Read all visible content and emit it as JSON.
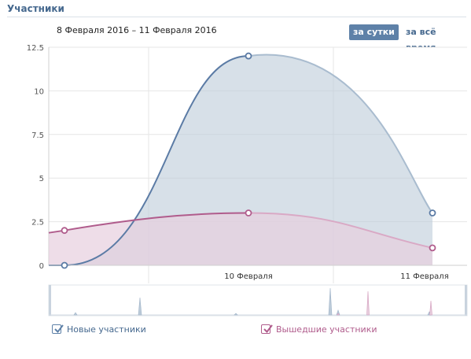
{
  "header": {
    "title": "Участники"
  },
  "date_range": "8 Февраля 2016 – 11 Февраля 2016",
  "period": {
    "active_label": "за сутки",
    "inactive_label": "за всё время"
  },
  "colors": {
    "new_line": "#5b7ba5",
    "new_fill": "#bccbd9",
    "left_line": "#b05c8c",
    "left_fill": "#e7cfde",
    "grid": "#e6e6e6"
  },
  "chart_data": {
    "type": "area",
    "x": [
      "8 Февраля",
      "10 Февраля",
      "11 Февраля"
    ],
    "x_tick_labels": [
      "10 Февраля",
      "11 Февраля"
    ],
    "y_ticks": [
      "0",
      "2.5",
      "5",
      "7.5",
      "10",
      "12.5"
    ],
    "ylim": [
      0,
      12.5
    ],
    "grid": true,
    "series": [
      {
        "name": "Новые участники",
        "values": [
          0,
          12,
          3
        ]
      },
      {
        "name": "Вышедшие участники",
        "values": [
          2,
          3,
          1
        ]
      }
    ]
  },
  "legend": {
    "new_label": "Новые участники",
    "left_label": "Вышедшие участники"
  }
}
